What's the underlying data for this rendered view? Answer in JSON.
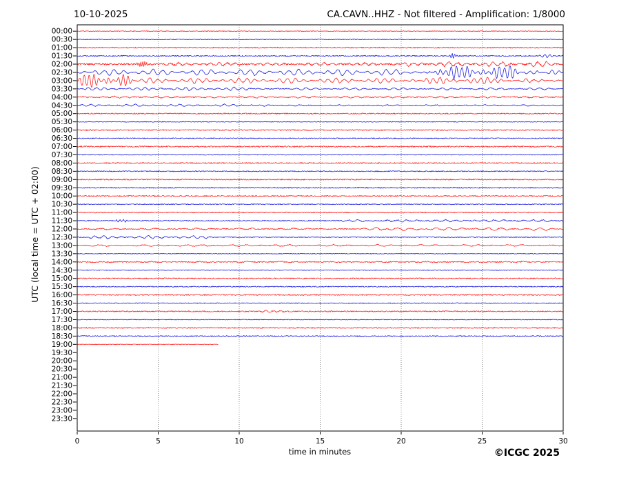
{
  "chart_data": {
    "type": "line",
    "subtype": "helicorder-seismogram",
    "title_left": "10-10-2025",
    "title_right": "CA.CAVN..HHZ - Not filtered - Amplification: 1/8000",
    "xlabel": "time in minutes",
    "ylabel": "UTC (local time = UTC + 02:00)",
    "copyright": "©ICGC 2025",
    "xlim": [
      0,
      30
    ],
    "xticks": [
      0,
      5,
      10,
      15,
      20,
      25,
      30
    ],
    "grid_minutes": [
      5,
      10,
      15,
      20,
      25
    ],
    "grid_on": true,
    "colors": {
      "red_trace": "#ff0000",
      "blue_trace": "#0000dd",
      "grid": "#888888",
      "frame": "#000000"
    },
    "row_time_step_minutes": 30,
    "rows": [
      {
        "label": "00:00",
        "c": "r",
        "data": true,
        "end": 30,
        "n": 0.5,
        "ev": []
      },
      {
        "label": "00:30",
        "c": "b",
        "data": true,
        "end": 30,
        "n": 0.5,
        "ev": []
      },
      {
        "label": "01:00",
        "c": "r",
        "data": true,
        "end": 30,
        "n": 0.8,
        "ev": []
      },
      {
        "label": "01:30",
        "c": "b",
        "data": true,
        "end": 30,
        "n": 0.8,
        "ev": [
          [
            22.9,
            23.5,
            4.5,
            0.15
          ],
          [
            28.4,
            29.8,
            1.8,
            0.3
          ]
        ]
      },
      {
        "label": "02:00",
        "c": "r",
        "data": true,
        "end": 30,
        "n": 1.2,
        "ev": [
          [
            3.6,
            4.4,
            5,
            0.12
          ],
          [
            4.4,
            20,
            1.6,
            0.5
          ],
          [
            20,
            30,
            2.8,
            0.55
          ]
        ]
      },
      {
        "label": "02:30",
        "c": "b",
        "data": true,
        "end": 30,
        "n": 0.5,
        "ev": [
          [
            0,
            21.5,
            3.6,
            0.6
          ],
          [
            21.5,
            27.5,
            8,
            0.33
          ],
          [
            27.5,
            30,
            4.2,
            0.45
          ]
        ]
      },
      {
        "label": "03:00",
        "c": "r",
        "data": true,
        "end": 30,
        "n": 0.6,
        "ev": [
          [
            0,
            3.5,
            8.5,
            0.3
          ],
          [
            3.5,
            20,
            3,
            0.5
          ],
          [
            20,
            27,
            3.8,
            0.42
          ],
          [
            27,
            30,
            2.2,
            0.5
          ]
        ]
      },
      {
        "label": "03:30",
        "c": "b",
        "data": true,
        "end": 30,
        "n": 0.6,
        "ev": [
          [
            0,
            12,
            1.8,
            0.5
          ],
          [
            12,
            30,
            1.2,
            0.6
          ]
        ]
      },
      {
        "label": "04:00",
        "c": "r",
        "data": true,
        "end": 30,
        "n": 0.7,
        "ev": [
          [
            0,
            30,
            0.9,
            0.65
          ]
        ]
      },
      {
        "label": "04:30",
        "c": "b",
        "data": true,
        "end": 30,
        "n": 0.5,
        "ev": [
          [
            0,
            12,
            1.3,
            0.55
          ],
          [
            12,
            30,
            0.7,
            0.6
          ]
        ]
      },
      {
        "label": "05:00",
        "c": "r",
        "data": true,
        "end": 30,
        "n": 0.8,
        "ev": []
      },
      {
        "label": "05:30",
        "c": "b",
        "data": true,
        "end": 30,
        "n": 0.5,
        "ev": []
      },
      {
        "label": "06:00",
        "c": "r",
        "data": true,
        "end": 30,
        "n": 0.8,
        "ev": []
      },
      {
        "label": "06:30",
        "c": "b",
        "data": true,
        "end": 30,
        "n": 0.7,
        "ev": []
      },
      {
        "label": "07:00",
        "c": "r",
        "data": true,
        "end": 30,
        "n": 0.9,
        "ev": []
      },
      {
        "label": "07:30",
        "c": "b",
        "data": true,
        "end": 30,
        "n": 0.5,
        "ev": []
      },
      {
        "label": "08:00",
        "c": "r",
        "data": true,
        "end": 30,
        "n": 0.8,
        "ev": []
      },
      {
        "label": "08:30",
        "c": "b",
        "data": true,
        "end": 30,
        "n": 0.7,
        "ev": []
      },
      {
        "label": "09:00",
        "c": "r",
        "data": true,
        "end": 30,
        "n": 0.8,
        "ev": []
      },
      {
        "label": "09:30",
        "c": "b",
        "data": true,
        "end": 30,
        "n": 0.8,
        "ev": []
      },
      {
        "label": "10:00",
        "c": "r",
        "data": true,
        "end": 30,
        "n": 0.8,
        "ev": []
      },
      {
        "label": "10:30",
        "c": "b",
        "data": true,
        "end": 30,
        "n": 0.6,
        "ev": []
      },
      {
        "label": "11:00",
        "c": "r",
        "data": true,
        "end": 30,
        "n": 0.7,
        "ev": []
      },
      {
        "label": "11:30",
        "c": "b",
        "data": true,
        "end": 30,
        "n": 0.7,
        "ev": [
          [
            2.2,
            3.4,
            2,
            0.22
          ],
          [
            16,
            30,
            1.1,
            0.6
          ]
        ]
      },
      {
        "label": "12:00",
        "c": "r",
        "data": true,
        "end": 30,
        "n": 0.7,
        "ev": [
          [
            0,
            16,
            0.8,
            0.85
          ],
          [
            17.4,
            19,
            2,
            0.75
          ],
          [
            19,
            30,
            1.7,
            0.8
          ]
        ]
      },
      {
        "label": "12:30",
        "c": "b",
        "data": true,
        "end": 30,
        "n": 0.6,
        "ev": [
          [
            0,
            8.5,
            1.7,
            0.55
          ]
        ]
      },
      {
        "label": "13:00",
        "c": "r",
        "data": true,
        "end": 30,
        "n": 0.6,
        "ev": [
          [
            0,
            30,
            1,
            0.9
          ]
        ]
      },
      {
        "label": "13:30",
        "c": "b",
        "data": true,
        "end": 30,
        "n": 0.5,
        "ev": []
      },
      {
        "label": "14:00",
        "c": "r",
        "data": true,
        "end": 30,
        "n": 0.8,
        "ev": [
          [
            0,
            30,
            0.5,
            1
          ]
        ]
      },
      {
        "label": "14:30",
        "c": "b",
        "data": true,
        "end": 30,
        "n": 0.5,
        "ev": []
      },
      {
        "label": "15:00",
        "c": "r",
        "data": true,
        "end": 30,
        "n": 0.8,
        "ev": []
      },
      {
        "label": "15:30",
        "c": "b",
        "data": true,
        "end": 30,
        "n": 0.7,
        "ev": []
      },
      {
        "label": "16:00",
        "c": "r",
        "data": true,
        "end": 30,
        "n": 0.8,
        "ev": []
      },
      {
        "label": "16:30",
        "c": "b",
        "data": true,
        "end": 30,
        "n": 0.6,
        "ev": []
      },
      {
        "label": "17:00",
        "c": "r",
        "data": true,
        "end": 30,
        "n": 0.8,
        "ev": [
          [
            11,
            13.5,
            1,
            0.45
          ]
        ]
      },
      {
        "label": "17:30",
        "c": "b",
        "data": true,
        "end": 30,
        "n": 0.5,
        "ev": []
      },
      {
        "label": "18:00",
        "c": "r",
        "data": true,
        "end": 30,
        "n": 0.8,
        "ev": []
      },
      {
        "label": "18:30",
        "c": "b",
        "data": true,
        "end": 30,
        "n": 0.7,
        "ev": []
      },
      {
        "label": "19:00",
        "c": "r",
        "data": true,
        "end": 8.7,
        "n": 0.4,
        "ev": []
      },
      {
        "label": "19:30",
        "c": "b",
        "data": false,
        "end": 0,
        "n": 0,
        "ev": []
      },
      {
        "label": "20:00",
        "c": "r",
        "data": false,
        "end": 0,
        "n": 0,
        "ev": []
      },
      {
        "label": "20:30",
        "c": "b",
        "data": false,
        "end": 0,
        "n": 0,
        "ev": []
      },
      {
        "label": "21:00",
        "c": "r",
        "data": false,
        "end": 0,
        "n": 0,
        "ev": []
      },
      {
        "label": "21:30",
        "c": "b",
        "data": false,
        "end": 0,
        "n": 0,
        "ev": []
      },
      {
        "label": "22:00",
        "c": "r",
        "data": false,
        "end": 0,
        "n": 0,
        "ev": []
      },
      {
        "label": "22:30",
        "c": "b",
        "data": false,
        "end": 0,
        "n": 0,
        "ev": []
      },
      {
        "label": "23:00",
        "c": "r",
        "data": false,
        "end": 0,
        "n": 0,
        "ev": []
      },
      {
        "label": "23:30",
        "c": "b",
        "data": false,
        "end": 0,
        "n": 0,
        "ev": []
      }
    ]
  }
}
